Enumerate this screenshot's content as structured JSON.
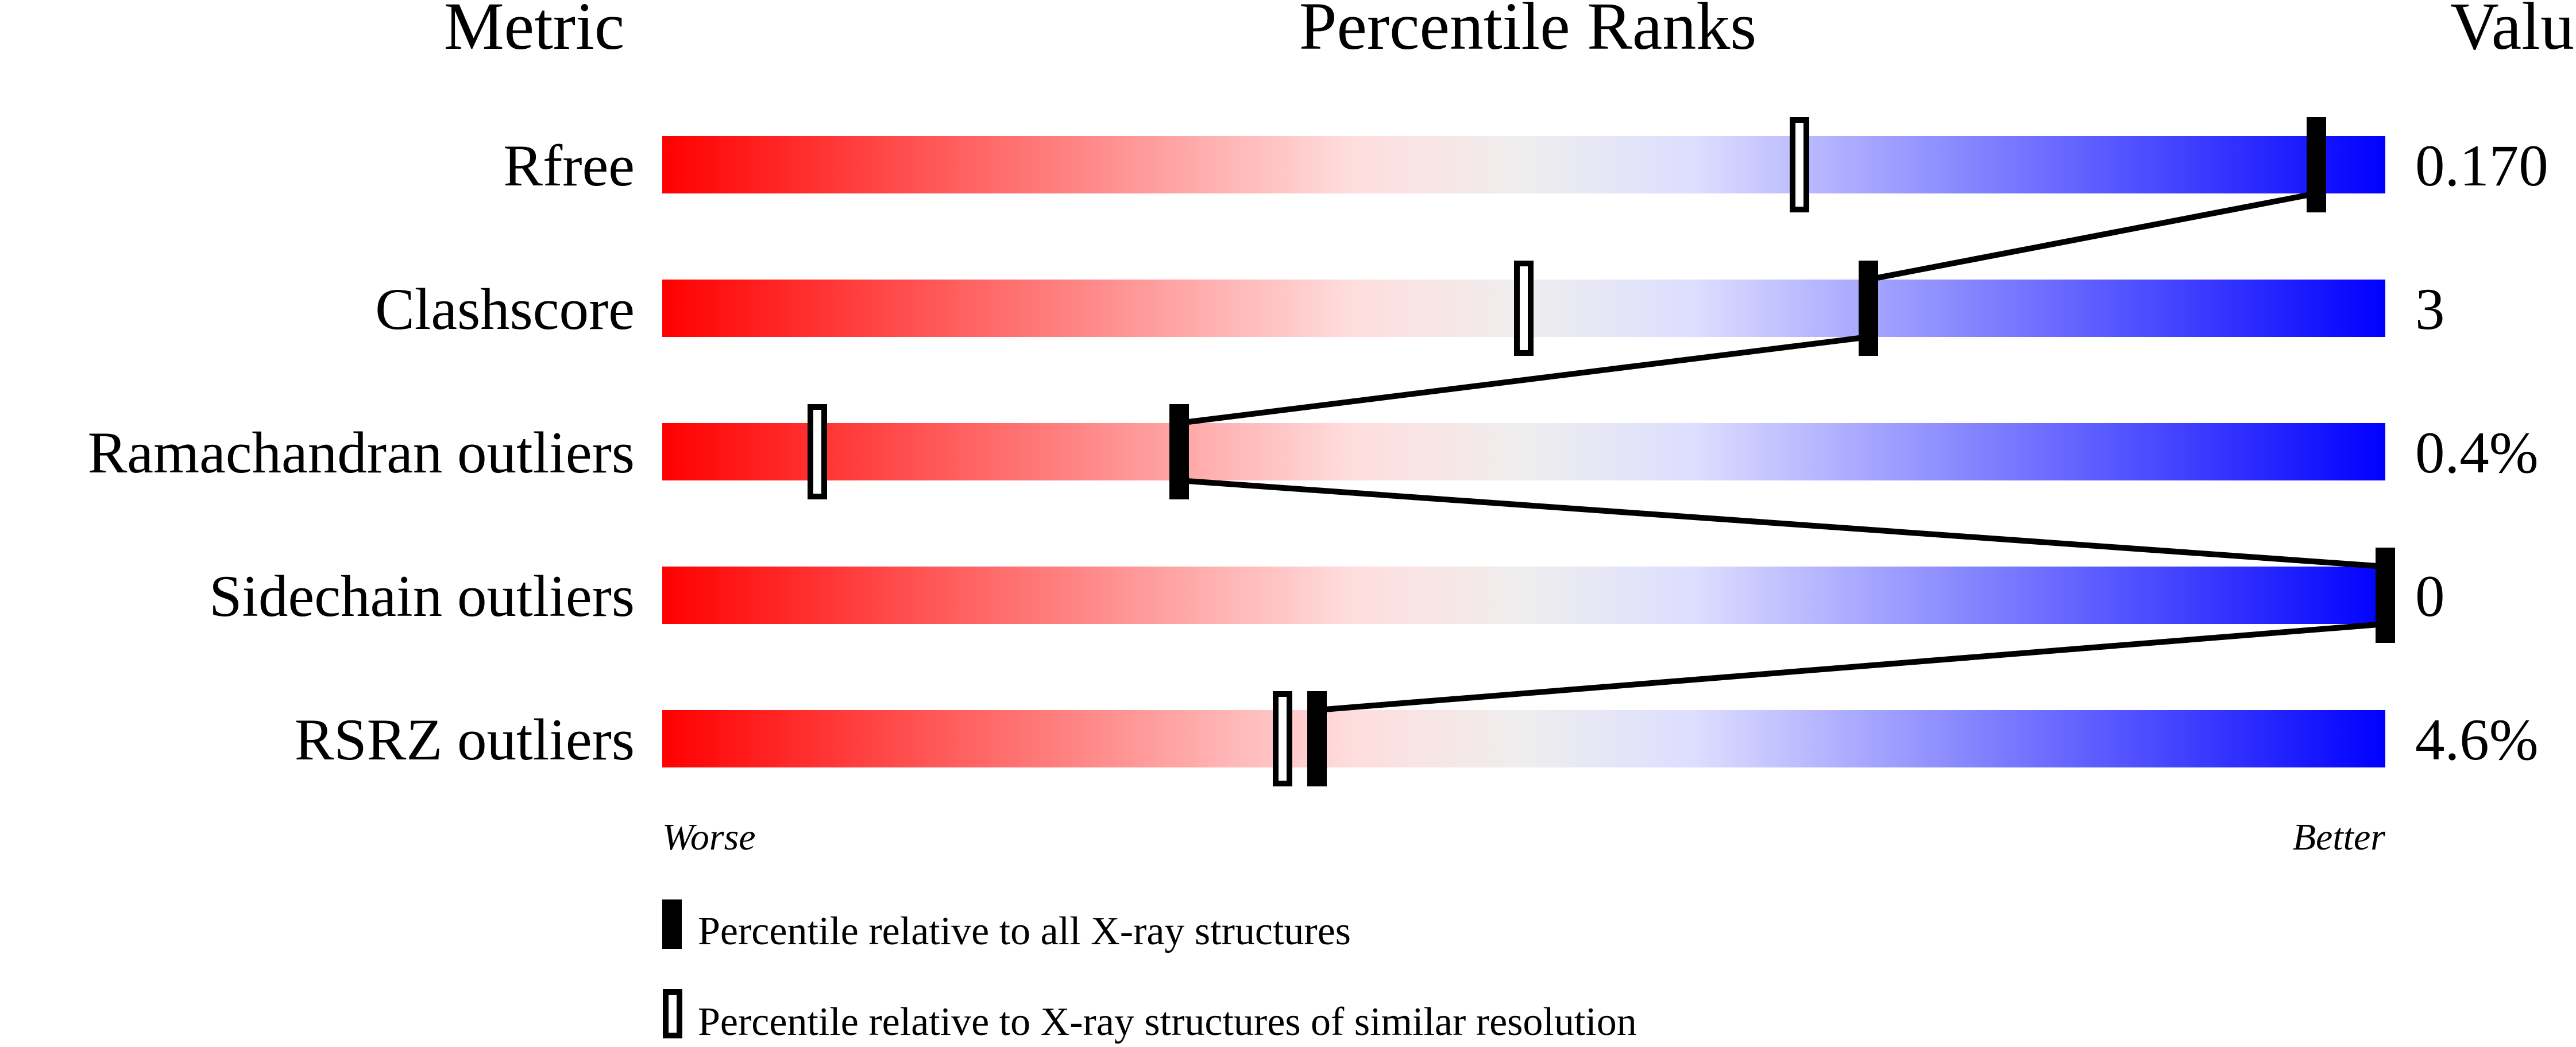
{
  "chart_data": {
    "type": "percentile-ranks",
    "headers": {
      "metric": "Metric",
      "percentile": "Percentile Ranks",
      "value": "Value"
    },
    "xlim": [
      0,
      100
    ],
    "axis_left_label": "Worse",
    "axis_right_label": "Better",
    "gradient_colors": [
      "#ff0000",
      "#ffdddd",
      "#eeeeee",
      "#ddddff",
      "#0000ff"
    ],
    "rows": [
      {
        "metric": "Rfree",
        "value": "0.170",
        "percentile_all": 96,
        "percentile_similar": 66
      },
      {
        "metric": "Clashscore",
        "value": "3",
        "percentile_all": 70,
        "percentile_similar": 50
      },
      {
        "metric": "Ramachandran outliers",
        "value": "0.4%",
        "percentile_all": 30,
        "percentile_similar": 9
      },
      {
        "metric": "Sidechain outliers",
        "value": "0",
        "percentile_all": 100,
        "percentile_similar": 100
      },
      {
        "metric": "RSRZ outliers",
        "value": "4.6%",
        "percentile_all": 38,
        "percentile_similar": 36
      }
    ],
    "legend": [
      {
        "marker": "filled",
        "label": "Percentile relative to all X-ray structures"
      },
      {
        "marker": "open",
        "label": "Percentile relative to X-ray structures of similar resolution"
      }
    ]
  }
}
